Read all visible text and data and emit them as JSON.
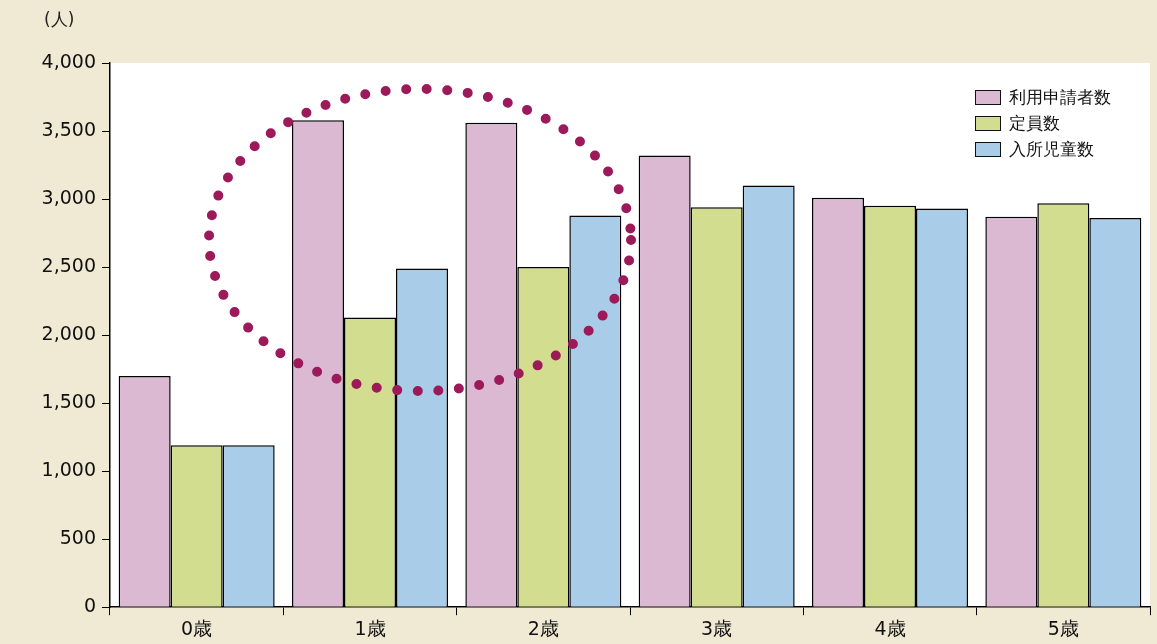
{
  "chart_data": {
    "type": "bar",
    "ylabel": "(人)",
    "categories": [
      "0歳",
      "1歳",
      "2歳",
      "3歳",
      "4歳",
      "5歳"
    ],
    "series": [
      {
        "name": "利用申請者数",
        "color": "#dbb9d3",
        "values": [
          1700,
          3580,
          3560,
          3320,
          3010,
          2870
        ]
      },
      {
        "name": "定員数",
        "color": "#d2dd8f",
        "values": [
          1190,
          2130,
          2500,
          2940,
          2950,
          2970
        ]
      },
      {
        "name": "入所児童数",
        "color": "#a9cde8",
        "values": [
          1190,
          2490,
          2880,
          3100,
          2930,
          2860
        ]
      }
    ],
    "ylim": [
      0,
      4000
    ],
    "yticks": [
      {
        "value": 0,
        "label": "0"
      },
      {
        "value": 500,
        "label": "500"
      },
      {
        "value": 1000,
        "label": "1,000"
      },
      {
        "value": 1500,
        "label": "1,500"
      },
      {
        "value": 2000,
        "label": "2,000"
      },
      {
        "value": 2500,
        "label": "2,500"
      },
      {
        "value": 3000,
        "label": "3,000"
      },
      {
        "value": 3500,
        "label": "3,500"
      },
      {
        "value": 4000,
        "label": "4,000"
      }
    ],
    "grid": false,
    "legend": "top right"
  }
}
